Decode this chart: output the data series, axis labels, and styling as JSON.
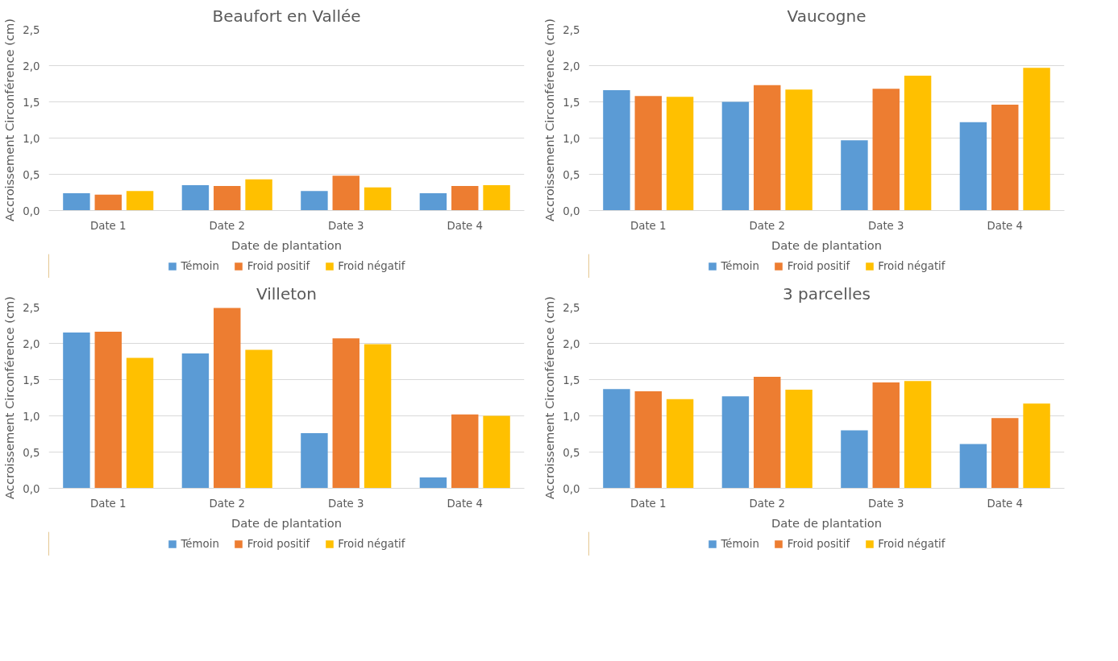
{
  "chart_data": [
    {
      "type": "bar",
      "title": "Beaufort en Vallée",
      "xlabel": "Date de plantation",
      "ylabel": "Accroissement Circonférence (cm)",
      "categories": [
        "Date 1",
        "Date 2",
        "Date 3",
        "Date 4"
      ],
      "ylim": [
        0,
        2.5
      ],
      "yticks": [
        {
          "value": 0,
          "label": "0,0"
        },
        {
          "value": 0.5,
          "label": "0,5"
        },
        {
          "value": 1,
          "label": "1,0"
        },
        {
          "value": 1.5,
          "label": "1,5"
        },
        {
          "value": 2,
          "label": "2,0"
        },
        {
          "value": 2.5,
          "label": "2,5"
        }
      ],
      "grid": "y",
      "legend": "bottom",
      "series": [
        {
          "name": "Témoin",
          "color": "#5b9bd5",
          "values": [
            0.24,
            0.35,
            0.27,
            0.24
          ]
        },
        {
          "name": "Froid positif",
          "color": "#ed7d31",
          "values": [
            0.22,
            0.34,
            0.48,
            0.34
          ]
        },
        {
          "name": "Froid négatif",
          "color": "#ffc000",
          "values": [
            0.27,
            0.43,
            0.32,
            0.35
          ]
        }
      ]
    },
    {
      "type": "bar",
      "title": "Vaucogne",
      "xlabel": "Date de plantation",
      "ylabel": "Accroissement Circonférence (cm)",
      "categories": [
        "Date 1",
        "Date 2",
        "Date 3",
        "Date 4"
      ],
      "ylim": [
        0,
        2.5
      ],
      "yticks": [
        {
          "value": 0,
          "label": "0,0"
        },
        {
          "value": 0.5,
          "label": "0,5"
        },
        {
          "value": 1,
          "label": "1,0"
        },
        {
          "value": 1.5,
          "label": "1,5"
        },
        {
          "value": 2,
          "label": "2,0"
        },
        {
          "value": 2.5,
          "label": "2,5"
        }
      ],
      "grid": "y",
      "legend": "bottom",
      "series": [
        {
          "name": "Témoin",
          "color": "#5b9bd5",
          "values": [
            1.66,
            1.5,
            0.97,
            1.22
          ]
        },
        {
          "name": "Froid positif",
          "color": "#ed7d31",
          "values": [
            1.58,
            1.73,
            1.68,
            1.46
          ]
        },
        {
          "name": "Froid négatif",
          "color": "#ffc000",
          "values": [
            1.57,
            1.67,
            1.86,
            1.97
          ]
        }
      ]
    },
    {
      "type": "bar",
      "title": "Villeton",
      "xlabel": "Date de plantation",
      "ylabel": "Accroissement Circonférence (cm)",
      "categories": [
        "Date 1",
        "Date 2",
        "Date 3",
        "Date 4"
      ],
      "ylim": [
        0,
        2.5
      ],
      "yticks": [
        {
          "value": 0,
          "label": "0,0"
        },
        {
          "value": 0.5,
          "label": "0,5"
        },
        {
          "value": 1,
          "label": "1,0"
        },
        {
          "value": 1.5,
          "label": "1,5"
        },
        {
          "value": 2,
          "label": "2,0"
        },
        {
          "value": 2.5,
          "label": "2,5"
        }
      ],
      "grid": "y",
      "legend": "bottom",
      "series": [
        {
          "name": "Témoin",
          "color": "#5b9bd5",
          "values": [
            2.15,
            1.86,
            0.76,
            0.15
          ]
        },
        {
          "name": "Froid positif",
          "color": "#ed7d31",
          "values": [
            2.16,
            2.49,
            2.07,
            1.02
          ]
        },
        {
          "name": "Froid négatif",
          "color": "#ffc000",
          "values": [
            1.8,
            1.91,
            1.99,
            1.0
          ]
        }
      ]
    },
    {
      "type": "bar",
      "title": "3 parcelles",
      "xlabel": "Date de plantation",
      "ylabel": "Accroissement Circonférence (cm)",
      "categories": [
        "Date 1",
        "Date 2",
        "Date 3",
        "Date 4"
      ],
      "ylim": [
        0,
        2.5
      ],
      "yticks": [
        {
          "value": 0,
          "label": "0,0"
        },
        {
          "value": 0.5,
          "label": "0,5"
        },
        {
          "value": 1,
          "label": "1,0"
        },
        {
          "value": 1.5,
          "label": "1,5"
        },
        {
          "value": 2,
          "label": "2,0"
        },
        {
          "value": 2.5,
          "label": "2,5"
        }
      ],
      "grid": "y",
      "legend": "bottom",
      "series": [
        {
          "name": "Témoin",
          "color": "#5b9bd5",
          "values": [
            1.37,
            1.27,
            0.8,
            0.61
          ]
        },
        {
          "name": "Froid positif",
          "color": "#ed7d31",
          "values": [
            1.34,
            1.54,
            1.46,
            0.97
          ]
        },
        {
          "name": "Froid négatif",
          "color": "#ffc000",
          "values": [
            1.23,
            1.36,
            1.48,
            1.17
          ]
        }
      ]
    }
  ]
}
